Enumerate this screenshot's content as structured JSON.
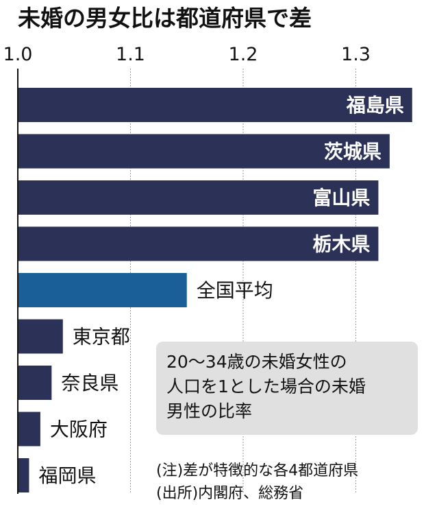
{
  "colors": {
    "bar": "#2b3157",
    "highlight": "#1a5f98",
    "grid": "#9a9a9a",
    "axis": "#111111",
    "note_bg": "#e0e0e0"
  },
  "chart_data": {
    "type": "bar",
    "orientation": "horizontal",
    "title": "未婚の男女比は都道府県で差",
    "xlabel": "",
    "ylabel": "",
    "xlim": [
      1.0,
      1.37
    ],
    "xticks": [
      1.0,
      1.1,
      1.2,
      1.3
    ],
    "xtick_labels": [
      "1.0",
      "1.1",
      "1.2",
      "1.3"
    ],
    "grid": true,
    "categories": [
      "福島県",
      "茨城県",
      "富山県",
      "栃木県",
      "全国平均",
      "東京都",
      "奈良県",
      "大阪府",
      "福岡県"
    ],
    "values": [
      1.35,
      1.33,
      1.32,
      1.32,
      1.15,
      1.04,
      1.03,
      1.02,
      1.01
    ],
    "highlight": "全国平均"
  },
  "note": {
    "lines": [
      "20～34歳の未婚女性の",
      "人口を1とした場合の未婚",
      "男性の比率"
    ]
  },
  "footnote": {
    "line1": "(注)差が特徴的な各4都道府県",
    "line2": "(出所)内閣府、総務省"
  }
}
